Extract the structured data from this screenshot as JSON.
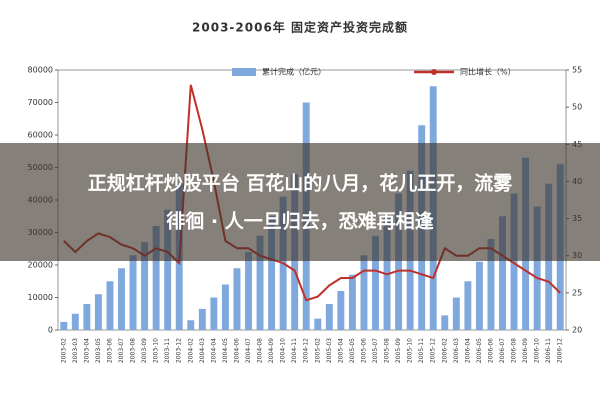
{
  "chart_data": {
    "type": "bar-line",
    "title": "2003-2006年 固定资产投资完成额",
    "categories": [
      "2003-02",
      "2003-03",
      "2003-04",
      "2003-05",
      "2003-06",
      "2003-07",
      "2003-08",
      "2003-09",
      "2003-10",
      "2003-11",
      "2003-12",
      "2004-02",
      "2004-03",
      "2004-04",
      "2004-05",
      "2004-06",
      "2004-07",
      "2004-08",
      "2004-09",
      "2004-10",
      "2004-11",
      "2004-12",
      "2005-02",
      "2005-03",
      "2005-04",
      "2005-05",
      "2005-06",
      "2005-07",
      "2005-08",
      "2005-09",
      "2005-10",
      "2005-11",
      "2005-12",
      "2006-02",
      "2006-03",
      "2006-04",
      "2006-05",
      "2006-06",
      "2006-07",
      "2006-08",
      "2006-09",
      "2006-10",
      "2006-11",
      "2006-12"
    ],
    "series": [
      {
        "name": "累计完成（亿元）",
        "color": "#7fa9dc",
        "values": [
          2500,
          5000,
          8000,
          11000,
          15000,
          19000,
          23000,
          27000,
          32000,
          37000,
          45000,
          3000,
          6500,
          10000,
          14000,
          19000,
          24000,
          29000,
          35000,
          41000,
          48000,
          70000,
          3500,
          8000,
          12000,
          17000,
          23000,
          29000,
          35000,
          42000,
          49000,
          63000,
          75000,
          4500,
          10000,
          15000,
          21000,
          28000,
          35000,
          42000,
          53000,
          38000,
          45000,
          51000
        ]
      },
      {
        "name": "同比增长（%）",
        "color": "#c0302a",
        "axis": "y2",
        "values": [
          32,
          30.5,
          32,
          33,
          32.5,
          31.5,
          31,
          30,
          31,
          30.5,
          29,
          53,
          47,
          40,
          32,
          31,
          31,
          30,
          29.5,
          29,
          28,
          24,
          24.5,
          26,
          27,
          27,
          28,
          28,
          27.5,
          28,
          28,
          27.5,
          27,
          31,
          30,
          30,
          31,
          31,
          30,
          29,
          28,
          27,
          26.5,
          25
        ]
      }
    ],
    "ylim": [
      0,
      80000
    ],
    "yticks": [
      0,
      10000,
      20000,
      30000,
      40000,
      50000,
      60000,
      70000,
      80000
    ],
    "y2lim": [
      20,
      55
    ],
    "y2ticks": [
      20,
      25,
      30,
      35,
      40,
      45,
      50,
      55
    ]
  },
  "banner": {
    "lines": [
      "正规杠杆炒股平台 百花山的八月，花儿正开，流雾",
      "徘徊 · 人一旦归去，恐难再相逢"
    ]
  }
}
